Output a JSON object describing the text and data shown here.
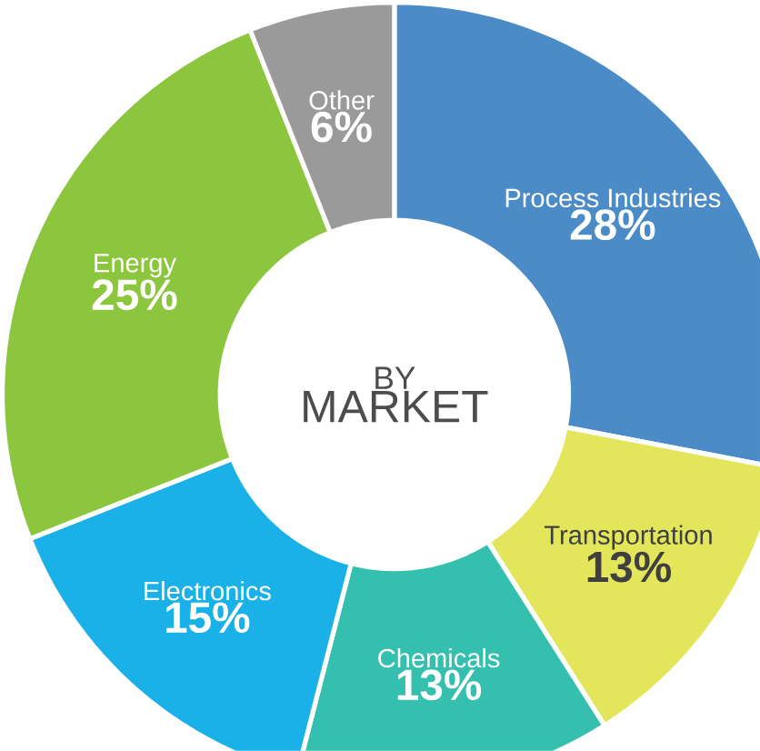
{
  "chart_data": {
    "type": "donut",
    "title": "BY",
    "subtitle": "MARKET",
    "categories": [
      "Process Industries",
      "Transportation",
      "Chemicals",
      "Electronics",
      "Energy",
      "Other"
    ],
    "values": [
      28,
      13,
      13,
      15,
      25,
      6
    ],
    "value_labels": [
      "28%",
      "13%",
      "13%",
      "15%",
      "25%",
      "6%"
    ],
    "colors": [
      "#4a8bc8",
      "#e3e55a",
      "#35bfae",
      "#1ab0e8",
      "#8cc63f",
      "#9a9a9a"
    ]
  }
}
